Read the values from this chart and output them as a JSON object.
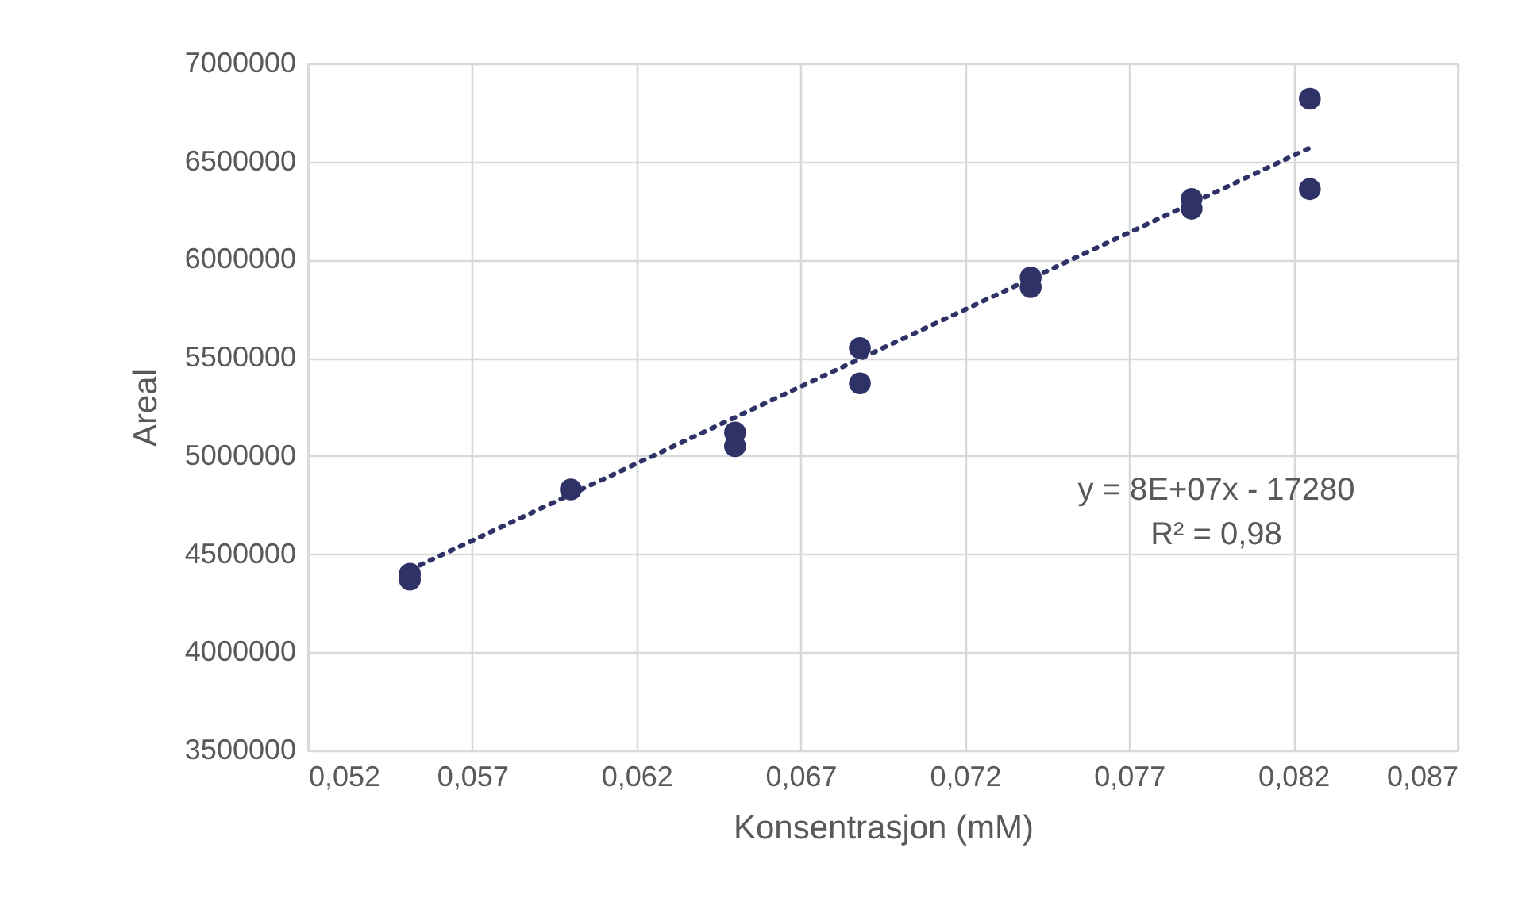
{
  "chart_data": {
    "type": "scatter",
    "xlabel": "Konsentrasjon (mM)",
    "ylabel": "Areal",
    "xlim": [
      0.052,
      0.087
    ],
    "xticks": [
      {
        "value": 0.052,
        "label": "0,052"
      },
      {
        "value": 0.057,
        "label": "0,057"
      },
      {
        "value": 0.062,
        "label": "0,062"
      },
      {
        "value": 0.067,
        "label": "0,067"
      },
      {
        "value": 0.072,
        "label": "0,072"
      },
      {
        "value": 0.077,
        "label": "0,077"
      },
      {
        "value": 0.082,
        "label": "0,082"
      },
      {
        "value": 0.087,
        "label": "0,087"
      }
    ],
    "ylim": [
      3500000,
      7000000
    ],
    "yticks": [
      3500000,
      4000000,
      4500000,
      5000000,
      5500000,
      6000000,
      6500000,
      7000000
    ],
    "grid": true,
    "series": [
      {
        "marker": "circle",
        "color": "#2e3267",
        "x": [
          0.0551,
          0.0551,
          0.06,
          0.065,
          0.065,
          0.0688,
          0.0688,
          0.074,
          0.074,
          0.0789,
          0.0789,
          0.0825,
          0.0825
        ],
        "values": [
          4400000,
          4370000,
          4830000,
          5120000,
          5050000,
          5550000,
          5370000,
          5910000,
          5860000,
          6310000,
          6260000,
          6820000,
          6360000
        ]
      },
      {
        "type": "line",
        "color": "#2e3267",
        "line_style": "dotted",
        "x": [
          0.0551,
          0.0825
        ],
        "values": [
          4420000,
          6570000
        ]
      }
    ],
    "annotations": [
      "y = 8E+07x - 17280",
      "R² = 0,98"
    ]
  }
}
